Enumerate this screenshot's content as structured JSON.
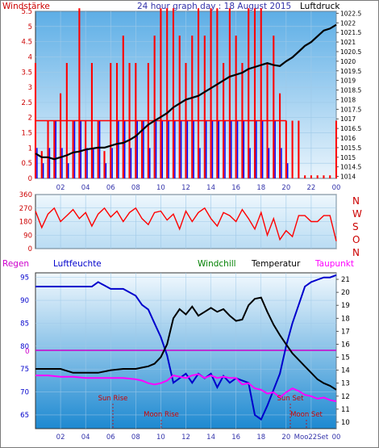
{
  "colors": {
    "wind_red": "#ff0000",
    "gust_blue": "#0000ff",
    "pressure_black": "#000000",
    "humidity_blue": "#0000cc",
    "windchill_green": "#008000",
    "dewpoint_magenta": "#ff00ff",
    "zero_line_magenta": "#cc00cc",
    "axis_left": "#cc0000",
    "axis_top": "#3333aa",
    "moon_label": "#cc0000",
    "bg_top": "#eef7fd",
    "bg_bottom": "#1d89d1"
  },
  "top_chart": {
    "title": "24 hour graph day : 18 August 2015",
    "left_label": "Windstärke",
    "right_label": "Luftdruck"
  },
  "dir_chart": {
    "compass": [
      "N",
      "W",
      "S",
      "O",
      "N"
    ]
  },
  "bottom_chart": {
    "legend": {
      "regen": "Regen",
      "luftfeuchte": "Luftfeuchte",
      "windchill": "Windchill",
      "temperatur": "Temperatur",
      "taupunkt": "Taupunkt"
    },
    "zero_label": "0",
    "events": [
      {
        "label": "Sun Rise"
      },
      {
        "label": "Moon Rise"
      },
      {
        "label": "Sun Set"
      },
      {
        "label": "Moon Set"
      }
    ]
  },
  "chart_data": [
    {
      "type": "line",
      "title": "24 hour graph day : 18 August 2015",
      "ylabel": "Windstärke",
      "y2label": "Luftdruck",
      "xlim": [
        0,
        24
      ],
      "x_ticks": [
        "02",
        "04",
        "06",
        "08",
        "10",
        "12",
        "14",
        "16",
        "18",
        "20",
        "22",
        "00"
      ],
      "ylim": [
        0,
        5.5
      ],
      "y_ticks": [
        "0",
        "0.5",
        "1",
        "1.5",
        "2",
        "2.5",
        "3",
        "3.5",
        "4",
        "4.5",
        "5",
        "5.5"
      ],
      "y2lim": [
        1013.9,
        1022.6
      ],
      "y2_ticks": [
        "1014",
        "1014.5",
        "1015",
        "1015.5",
        "1016",
        "1016.5",
        "1017",
        "1017.5",
        "1018",
        "1018.5",
        "1019",
        "1019.5",
        "1020",
        "1020.5",
        "1021",
        "1021.5",
        "1022",
        "1022.5"
      ],
      "series": [
        {
          "axis": "right",
          "x": [
            0.0,
            0.5,
            1.0,
            1.5,
            2.0,
            2.5,
            3.0,
            3.5,
            4.0,
            4.5,
            5.0,
            5.5,
            6.0,
            6.5,
            7.0,
            7.5,
            8.0,
            8.5,
            9.0,
            9.5,
            10.0,
            10.5,
            11.0,
            11.5,
            12.0,
            12.5,
            13.0,
            13.5,
            14.0,
            14.5,
            15.0,
            15.5,
            16.0,
            16.5,
            17.0,
            17.5,
            18.0,
            18.5,
            19.0,
            19.5,
            20.0,
            20.5,
            21.0,
            21.5,
            22.0,
            22.5,
            23.0,
            23.5,
            24.0
          ],
          "y": [
            1015.2,
            1015.0,
            1015.0,
            1014.9,
            1015.0,
            1015.1,
            1015.25,
            1015.3,
            1015.4,
            1015.45,
            1015.5,
            1015.5,
            1015.6,
            1015.7,
            1015.75,
            1015.9,
            1016.1,
            1016.4,
            1016.7,
            1016.9,
            1017.1,
            1017.3,
            1017.6,
            1017.8,
            1018.0,
            1018.1,
            1018.2,
            1018.4,
            1018.6,
            1018.8,
            1019.0,
            1019.2,
            1019.3,
            1019.4,
            1019.6,
            1019.7,
            1019.8,
            1019.9,
            1019.8,
            1019.75,
            1020.0,
            1020.2,
            1020.5,
            1020.8,
            1021.0,
            1021.3,
            1021.6,
            1021.7,
            1021.9
          ]
        }
      ],
      "bars": [
        {
          "axis": "left",
          "x": [
            0.0,
            0.5,
            1.0,
            1.5,
            2.0,
            2.5,
            3.0,
            3.5,
            4.0,
            4.5,
            5.0,
            5.5,
            6.0,
            6.5,
            7.0,
            7.5,
            8.0,
            8.5,
            9.0,
            9.5,
            10.0,
            10.5,
            11.0,
            11.5,
            12.0,
            12.5,
            13.0,
            13.5,
            14.0,
            14.5,
            15.0,
            15.5,
            16.0,
            16.5,
            17.0,
            17.5,
            18.0,
            18.5,
            19.0,
            19.5,
            20.0,
            20.5,
            21.0,
            21.5,
            22.0,
            22.5,
            23.0,
            23.5,
            24.0
          ],
          "wind": [
            3.8,
            0.9,
            1.9,
            1.9,
            2.8,
            3.8,
            1.9,
            5.6,
            1.9,
            3.8,
            1.9,
            0.9,
            3.8,
            3.8,
            4.7,
            3.8,
            3.8,
            1.9,
            3.8,
            4.7,
            5.6,
            5.6,
            5.6,
            4.7,
            3.8,
            4.7,
            5.6,
            4.7,
            5.6,
            5.6,
            3.8,
            5.6,
            4.7,
            3.8,
            5.6,
            5.6,
            5.6,
            3.8,
            4.7,
            2.8,
            1.9,
            1.9,
            1.9,
            0.1,
            0.1,
            0.1,
            0.1,
            0.1,
            1.9
          ],
          "gust": [
            1.0,
            0.5,
            1.0,
            1.9,
            1.0,
            0.5,
            1.9,
            1.9,
            1.0,
            1.0,
            1.9,
            0.5,
            1.0,
            1.9,
            1.9,
            1.0,
            1.9,
            1.9,
            1.0,
            1.9,
            1.9,
            1.9,
            1.9,
            1.9,
            1.9,
            1.9,
            1.0,
            1.9,
            1.9,
            1.9,
            1.9,
            1.9,
            1.9,
            1.9,
            1.0,
            1.9,
            1.9,
            1.0,
            1.9,
            1.0,
            0.5,
            0.0,
            0.0,
            0.0,
            0.0,
            0.0,
            0.0,
            0.0,
            0.0
          ]
        }
      ]
    },
    {
      "type": "line",
      "title": "",
      "ylabel": "",
      "xlim": [
        0,
        24
      ],
      "ylim": [
        0,
        360
      ],
      "y_ticks": [
        "0",
        "90",
        "180",
        "270",
        "360"
      ],
      "series": [
        {
          "x": [
            0.0,
            0.5,
            1.0,
            1.5,
            2.0,
            2.5,
            3.0,
            3.5,
            4.0,
            4.5,
            5.0,
            5.5,
            6.0,
            6.5,
            7.0,
            7.5,
            8.0,
            8.5,
            9.0,
            9.5,
            10.0,
            10.5,
            11.0,
            11.5,
            12.0,
            12.5,
            13.0,
            13.5,
            14.0,
            14.5,
            15.0,
            15.5,
            16.0,
            16.5,
            17.0,
            17.5,
            18.0,
            18.5,
            19.0,
            19.5,
            20.0,
            20.5,
            21.0,
            21.5,
            22.0,
            22.5,
            23.0,
            23.5,
            24.0
          ],
          "y": [
            250,
            140,
            230,
            270,
            180,
            220,
            260,
            200,
            240,
            150,
            230,
            270,
            210,
            250,
            180,
            240,
            270,
            200,
            160,
            240,
            250,
            190,
            230,
            130,
            250,
            180,
            240,
            270,
            200,
            150,
            240,
            220,
            180,
            260,
            200,
            130,
            240,
            90,
            200,
            60,
            120,
            80,
            220,
            220,
            180,
            180,
            220,
            220,
            50
          ]
        }
      ]
    },
    {
      "type": "line",
      "title": "",
      "xlim": [
        0,
        24
      ],
      "x_ticks": [
        "02",
        "04",
        "06",
        "08",
        "10",
        "12",
        "14",
        "16",
        "18",
        "20",
        "Moo22Set",
        "00"
      ],
      "ylim": [
        62,
        96
      ],
      "y_ticks": [
        "65",
        "70",
        "75",
        "80",
        "85",
        "90",
        "95"
      ],
      "y2lim": [
        9.5,
        21.5
      ],
      "y2_ticks": [
        "10",
        "11",
        "12",
        "13",
        "14",
        "15",
        "16",
        "17",
        "18",
        "19",
        "20",
        "21"
      ],
      "series": [
        {
          "name": "Luftfeuchte",
          "axis": "left",
          "x": [
            0.0,
            1.0,
            2.0,
            3.0,
            4.0,
            4.5,
            5.0,
            6.0,
            7.0,
            8.0,
            8.5,
            9.0,
            9.5,
            10.0,
            10.5,
            11.0,
            11.5,
            12.0,
            12.5,
            13.0,
            13.5,
            14.0,
            14.5,
            15.0,
            15.5,
            16.0,
            16.5,
            17.0,
            17.5,
            18.0,
            18.5,
            19.0,
            19.5,
            20.0,
            20.5,
            21.0,
            21.5,
            22.0,
            22.5,
            23.0,
            23.5,
            24.0
          ],
          "y": [
            93.0,
            93.0,
            93.0,
            93.0,
            93.0,
            93.0,
            94.0,
            92.5,
            92.5,
            91.0,
            89.0,
            88.0,
            85.0,
            82.0,
            78.0,
            72.0,
            73.0,
            74.0,
            72.0,
            74.0,
            73.0,
            74.0,
            71.0,
            73.5,
            72.0,
            73.0,
            72.5,
            72.0,
            65.0,
            64.0,
            67.0,
            70.5,
            74.0,
            80.0,
            85.0,
            89.0,
            93.0,
            94.0,
            94.5,
            95.0,
            95.0,
            95.5
          ]
        },
        {
          "name": "Temperatur",
          "axis": "right",
          "x": [
            0.0,
            1.0,
            2.0,
            3.0,
            4.0,
            5.0,
            6.0,
            7.0,
            8.0,
            8.5,
            9.0,
            9.5,
            10.0,
            10.5,
            11.0,
            11.5,
            12.0,
            12.5,
            13.0,
            13.5,
            14.0,
            14.5,
            15.0,
            15.5,
            16.0,
            16.5,
            17.0,
            17.5,
            18.0,
            18.5,
            19.0,
            19.5,
            20.0,
            20.5,
            21.0,
            21.5,
            22.0,
            22.5,
            23.0,
            23.5,
            24.0
          ],
          "y": [
            14.1,
            14.1,
            14.1,
            13.8,
            13.8,
            13.8,
            14.0,
            14.1,
            14.1,
            14.2,
            14.3,
            14.5,
            15.0,
            16.0,
            18.0,
            18.7,
            18.3,
            18.9,
            18.2,
            18.5,
            18.8,
            18.5,
            18.7,
            18.2,
            17.8,
            17.9,
            19.0,
            19.5,
            19.6,
            18.5,
            17.5,
            16.7,
            16.0,
            15.3,
            14.8,
            14.3,
            13.8,
            13.3,
            13.0,
            12.8,
            12.5
          ]
        },
        {
          "name": "Taupunkt",
          "axis": "right",
          "x": [
            0.0,
            1.0,
            2.0,
            3.0,
            4.0,
            5.0,
            6.0,
            7.0,
            8.0,
            8.5,
            9.0,
            9.5,
            10.0,
            10.5,
            11.0,
            11.5,
            12.0,
            12.5,
            13.0,
            13.5,
            14.0,
            14.5,
            15.0,
            15.5,
            16.0,
            16.5,
            17.0,
            17.5,
            18.0,
            18.5,
            19.0,
            19.5,
            20.0,
            20.5,
            21.0,
            21.5,
            22.0,
            22.5,
            23.0,
            23.5,
            24.0
          ],
          "y": [
            13.6,
            13.6,
            13.5,
            13.5,
            13.4,
            13.4,
            13.4,
            13.4,
            13.3,
            13.2,
            13.0,
            12.9,
            13.0,
            13.2,
            13.6,
            13.5,
            13.4,
            13.6,
            13.7,
            13.4,
            13.6,
            13.4,
            13.5,
            13.4,
            13.4,
            12.9,
            13.0,
            12.6,
            12.5,
            12.2,
            12.3,
            11.9,
            12.3,
            12.6,
            12.4,
            12.1,
            12.0,
            11.8,
            11.9,
            11.7,
            11.6
          ]
        }
      ]
    }
  ]
}
